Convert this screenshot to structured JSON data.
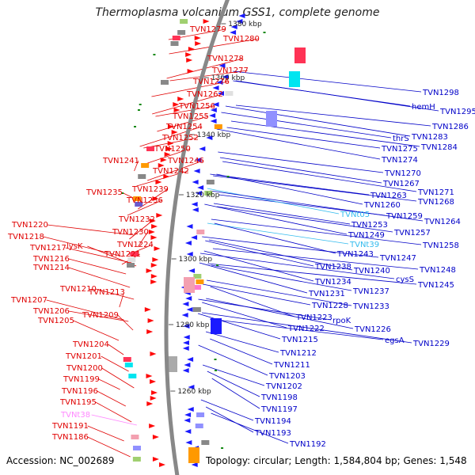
{
  "title": "Thermoplasma volcanium GSS1, complete genome",
  "accession": "Accession: NC_002689",
  "topology": "Topology: circular; Length: 1,584,804 bp; Genes: 1,548",
  "colors": {
    "left_label": "#e00000",
    "right_label": "#0000c8",
    "trna_left": "#ff88ff",
    "trna_right": "#33bbee",
    "backbone": "#888888",
    "tick": "#555555"
  },
  "kbp_ticks": [
    {
      "label": "1380 kbp"
    },
    {
      "label": "1360 kbp"
    },
    {
      "label": "1340 kbp"
    },
    {
      "label": "1320 kbp"
    },
    {
      "label": "1300 kbp"
    },
    {
      "label": "1280 kbp"
    },
    {
      "label": "1260 kbp"
    }
  ],
  "left_labels": [
    {
      "text": "TVN1279",
      "kind": "gene"
    },
    {
      "text": "TVN1280",
      "kind": "gene"
    },
    {
      "text": "TVN1278",
      "kind": "gene"
    },
    {
      "text": "TVN1277",
      "kind": "gene"
    },
    {
      "text": "TVN1276",
      "kind": "gene"
    },
    {
      "text": "TVN1262",
      "kind": "gene"
    },
    {
      "text": "TVN1256",
      "kind": "gene"
    },
    {
      "text": "TVN1255",
      "kind": "gene"
    },
    {
      "text": "TVN1254",
      "kind": "gene"
    },
    {
      "text": "TVN1252",
      "kind": "gene"
    },
    {
      "text": "TVN1250",
      "kind": "gene"
    },
    {
      "text": "TVN1246",
      "kind": "gene"
    },
    {
      "text": "TVN1241",
      "kind": "gene"
    },
    {
      "text": "TVN1242",
      "kind": "gene"
    },
    {
      "text": "TVN1239",
      "kind": "gene"
    },
    {
      "text": "TVN1235",
      "kind": "gene"
    },
    {
      "text": "TVN1236",
      "kind": "gene"
    },
    {
      "text": "TVN1232",
      "kind": "gene"
    },
    {
      "text": "TVN1220",
      "kind": "gene"
    },
    {
      "text": "TVN1230",
      "kind": "gene"
    },
    {
      "text": "TVN1218",
      "kind": "gene"
    },
    {
      "text": "TVN1224",
      "kind": "gene"
    },
    {
      "text": "TVN1217",
      "kind": "gene"
    },
    {
      "text": "lysK",
      "kind": "gene"
    },
    {
      "text": "TVN1221",
      "kind": "gene"
    },
    {
      "text": "TVN1216",
      "kind": "gene"
    },
    {
      "text": "TVN1214",
      "kind": "gene"
    },
    {
      "text": "TVN1210",
      "kind": "gene"
    },
    {
      "text": "TVN1213",
      "kind": "gene"
    },
    {
      "text": "TVN1207",
      "kind": "gene"
    },
    {
      "text": "TVN1206",
      "kind": "gene"
    },
    {
      "text": "TVN1209",
      "kind": "gene"
    },
    {
      "text": "TVN1205",
      "kind": "gene"
    },
    {
      "text": "TVN1204",
      "kind": "gene"
    },
    {
      "text": "TVN1201",
      "kind": "gene"
    },
    {
      "text": "TVN1200",
      "kind": "gene"
    },
    {
      "text": "TVN1199",
      "kind": "gene"
    },
    {
      "text": "TVN1196",
      "kind": "gene"
    },
    {
      "text": "TVN1195",
      "kind": "gene"
    },
    {
      "text": "TVNt38",
      "kind": "trna"
    },
    {
      "text": "TVN1191",
      "kind": "gene"
    },
    {
      "text": "TVN1186",
      "kind": "gene"
    }
  ],
  "right_labels": [
    {
      "text": "TVN1298",
      "kind": "gene"
    },
    {
      "text": "hemH",
      "kind": "gene"
    },
    {
      "text": "TVN1295",
      "kind": "gene"
    },
    {
      "text": "TVN1286",
      "kind": "gene"
    },
    {
      "text": "thrS",
      "kind": "gene"
    },
    {
      "text": "TVN1283",
      "kind": "gene"
    },
    {
      "text": "TVN1275",
      "kind": "gene"
    },
    {
      "text": "TVN1284",
      "kind": "gene"
    },
    {
      "text": "TVN1274",
      "kind": "gene"
    },
    {
      "text": "TVN1270",
      "kind": "gene"
    },
    {
      "text": "TVN1267",
      "kind": "gene"
    },
    {
      "text": "TVN1271",
      "kind": "gene"
    },
    {
      "text": "TVN1263",
      "kind": "gene"
    },
    {
      "text": "TVN1268",
      "kind": "gene"
    },
    {
      "text": "TVN1260",
      "kind": "gene"
    },
    {
      "text": "TVN1259",
      "kind": "gene"
    },
    {
      "text": "TVNt05",
      "kind": "trna"
    },
    {
      "text": "TVN1264",
      "kind": "gene"
    },
    {
      "text": "TVN1253",
      "kind": "gene"
    },
    {
      "text": "TVN1257",
      "kind": "gene"
    },
    {
      "text": "TVN1249",
      "kind": "gene"
    },
    {
      "text": "TVNt39",
      "kind": "trna"
    },
    {
      "text": "TVN1258",
      "kind": "gene"
    },
    {
      "text": "TVN1243",
      "kind": "gene"
    },
    {
      "text": "TVN1247",
      "kind": "gene"
    },
    {
      "text": "TVN1238",
      "kind": "gene"
    },
    {
      "text": "TVN1240",
      "kind": "gene"
    },
    {
      "text": "TVN1248",
      "kind": "gene"
    },
    {
      "text": "cysS",
      "kind": "gene"
    },
    {
      "text": "TVN1234",
      "kind": "gene"
    },
    {
      "text": "TVN1245",
      "kind": "gene"
    },
    {
      "text": "TVN1237",
      "kind": "gene"
    },
    {
      "text": "TVN1231",
      "kind": "gene"
    },
    {
      "text": "TVN1228",
      "kind": "gene"
    },
    {
      "text": "TVN1233",
      "kind": "gene"
    },
    {
      "text": "TVN1223",
      "kind": "gene"
    },
    {
      "text": "rpoK",
      "kind": "gene"
    },
    {
      "text": "TVN1222",
      "kind": "gene"
    },
    {
      "text": "TVN1226",
      "kind": "gene"
    },
    {
      "text": "egsA",
      "kind": "gene"
    },
    {
      "text": "TVN1215",
      "kind": "gene"
    },
    {
      "text": "TVN1229",
      "kind": "gene"
    },
    {
      "text": "TVN1212",
      "kind": "gene"
    },
    {
      "text": "TVN1211",
      "kind": "gene"
    },
    {
      "text": "TVN1203",
      "kind": "gene"
    },
    {
      "text": "TVN1202",
      "kind": "gene"
    },
    {
      "text": "TVN1198",
      "kind": "gene"
    },
    {
      "text": "TVN1197",
      "kind": "gene"
    },
    {
      "text": "TVN1194",
      "kind": "gene"
    },
    {
      "text": "TVN1193",
      "kind": "gene"
    },
    {
      "text": "TVN1192",
      "kind": "gene"
    }
  ]
}
